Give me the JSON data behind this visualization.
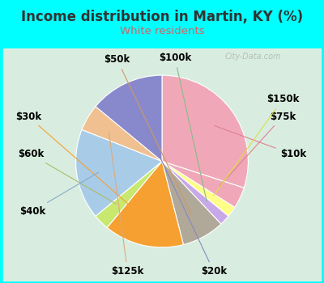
{
  "title": "Income distribution in Martin, KY (%)",
  "subtitle": "White residents",
  "title_color": "#333333",
  "subtitle_color": "#cc6666",
  "background_outer": "#00ffff",
  "background_inner_left": "#d4edd4",
  "background_inner_right": "#e8f5f0",
  "watermark": "City-Data.com",
  "labels": [
    "$10k",
    "$75k",
    "$150k",
    "$100k",
    "$50k",
    "$30k",
    "$60k",
    "$40k",
    "$125k",
    "$20k"
  ],
  "values": [
    30,
    4,
    2,
    2,
    8,
    15,
    3,
    17,
    5,
    14
  ],
  "colors": [
    "#f0a8b8",
    "#f0a8b8",
    "#ffff88",
    "#c8a8e8",
    "#b0a898",
    "#f5a030",
    "#c8e870",
    "#a8cce8",
    "#f0c090",
    "#8888cc"
  ],
  "startangle": 90,
  "label_lines": true,
  "label_fontsize": 8.5,
  "label_fontweight": "bold"
}
